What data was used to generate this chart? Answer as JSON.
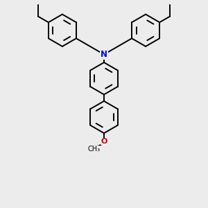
{
  "bg_color": "#ececec",
  "bond_color": "#000000",
  "N_color": "#0000ff",
  "O_color": "#cc0000",
  "bond_width": 1.4,
  "figsize": [
    3.0,
    3.0
  ],
  "dpi": 100,
  "xlim": [
    -2.6,
    2.6
  ],
  "ylim": [
    -3.4,
    2.2
  ]
}
